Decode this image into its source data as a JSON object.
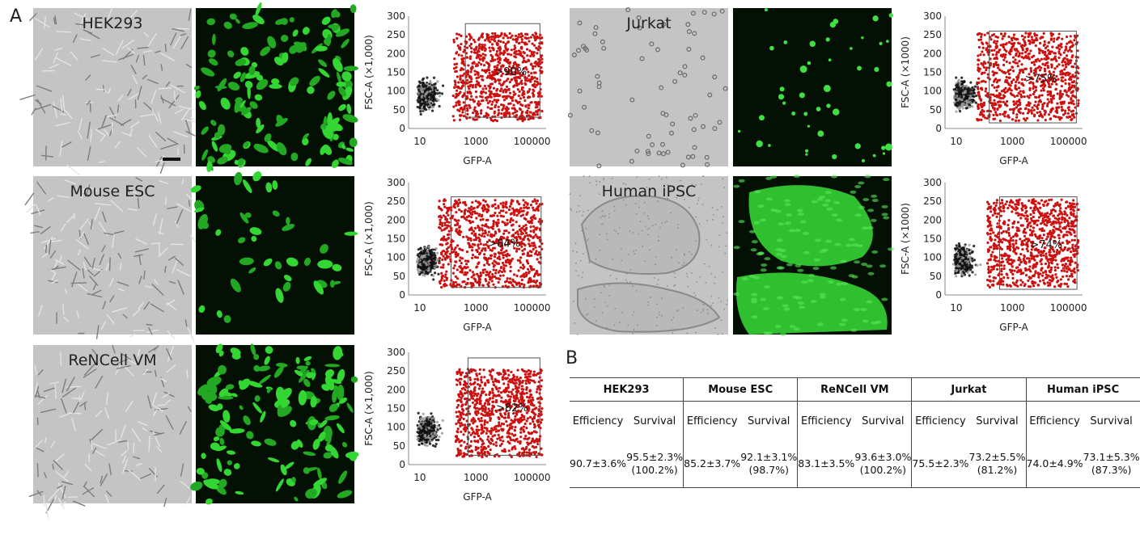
{
  "panel_labels": {
    "a": "A",
    "b": "B"
  },
  "cell_images": [
    {
      "label": "HEK293",
      "fluor_style": "dense"
    },
    {
      "label": "Mouse ESC",
      "fluor_style": "sparse"
    },
    {
      "label": "ReNCell VM",
      "fluor_style": "dense"
    },
    {
      "label": "Jurkat",
      "fluor_style": "dots"
    },
    {
      "label": "Human iPSC",
      "fluor_style": "colony"
    }
  ],
  "chart_data": [
    {
      "type": "scatter",
      "cell_line": "HEK293",
      "xlabel": "GFP-A",
      "ylabel": "FSC-A (×1,000)",
      "xscale": "log",
      "xticks": [
        "10",
        "1000",
        "100000"
      ],
      "yticks": [
        "0",
        "50",
        "100",
        "150",
        "200",
        "250",
        "300"
      ],
      "ylim": [
        0,
        300
      ],
      "gate_label": ">90%",
      "gate": {
        "x": [
          420,
          190000
        ],
        "y": [
          30,
          280
        ]
      },
      "positive_color": "#cc1111",
      "negative_color": "#111111"
    },
    {
      "type": "scatter",
      "cell_line": "Mouse ESC",
      "xlabel": "GFP-A",
      "ylabel": "FSC-A (×1,000)",
      "xscale": "log",
      "xticks": [
        "10",
        "1000",
        "100000"
      ],
      "yticks": [
        "0",
        "50",
        "100",
        "150",
        "200",
        "250",
        "300"
      ],
      "ylim": [
        0,
        300
      ],
      "gate_label": ">84%",
      "gate": {
        "x": [
          130,
          210000
        ],
        "y": [
          20,
          262
        ]
      },
      "positive_color": "#cc1111",
      "negative_color": "#111111"
    },
    {
      "type": "scatter",
      "cell_line": "ReNCell VM",
      "xlabel": "GFP-A",
      "ylabel": "FSC-A (×1,000)",
      "xscale": "log",
      "xticks": [
        "10",
        "1000",
        "100000"
      ],
      "yticks": [
        "0",
        "50",
        "100",
        "150",
        "200",
        "250",
        "300"
      ],
      "ylim": [
        0,
        300
      ],
      "gate_label": ">82%",
      "gate": {
        "x": [
          520,
          190000
        ],
        "y": [
          25,
          285
        ]
      },
      "positive_color": "#cc1111",
      "negative_color": "#111111"
    },
    {
      "type": "scatter",
      "cell_line": "Jurkat",
      "xlabel": "GFP-A",
      "ylabel": "FSC-A (×1000)",
      "xscale": "log",
      "xticks": [
        "10",
        "1000",
        "100000"
      ],
      "yticks": [
        "0",
        "50",
        "100",
        "150",
        "200",
        "250",
        "300"
      ],
      "ylim": [
        0,
        300
      ],
      "gate_label": ">75%",
      "gate": {
        "x": [
          150,
          190000
        ],
        "y": [
          15,
          260
        ]
      },
      "positive_color": "#cc1111",
      "negative_color": "#111111"
    },
    {
      "type": "scatter",
      "cell_line": "Human iPSC",
      "xlabel": "GFP-A",
      "ylabel": "FSC-A (×1000)",
      "xscale": "log",
      "xticks": [
        "10",
        "1000",
        "100000"
      ],
      "yticks": [
        "0",
        "50",
        "100",
        "150",
        "200",
        "250",
        "300"
      ],
      "ylim": [
        0,
        300
      ],
      "gate_label": ">74%",
      "gate": {
        "x": [
          350,
          200000
        ],
        "y": [
          15,
          262
        ]
      },
      "positive_color": "#cc1111",
      "negative_color": "#111111"
    }
  ],
  "table": {
    "headers": [
      "HEK293",
      "Mouse ESC",
      "ReNCell VM",
      "Jurkat",
      "Human iPSC"
    ],
    "subheaders": [
      "Efficiency",
      "Survival"
    ],
    "rows": [
      {
        "efficiency": "90.7±3.6%",
        "survival": "95.5±2.3%",
        "survival_pct": "(100.2%)"
      },
      {
        "efficiency": "85.2±3.7%",
        "survival": "92.1±3.1%",
        "survival_pct": "(98.7%)"
      },
      {
        "efficiency": "83.1±3.5%",
        "survival": "93.6±3.0%",
        "survival_pct": "(100.2%)"
      },
      {
        "efficiency": "75.5±2.3%",
        "survival": "73.2±5.5%",
        "survival_pct": "(81.2%)"
      },
      {
        "efficiency": "74.0±4.9%",
        "survival": "73.1±5.3%",
        "survival_pct": "(87.3%)"
      }
    ]
  }
}
